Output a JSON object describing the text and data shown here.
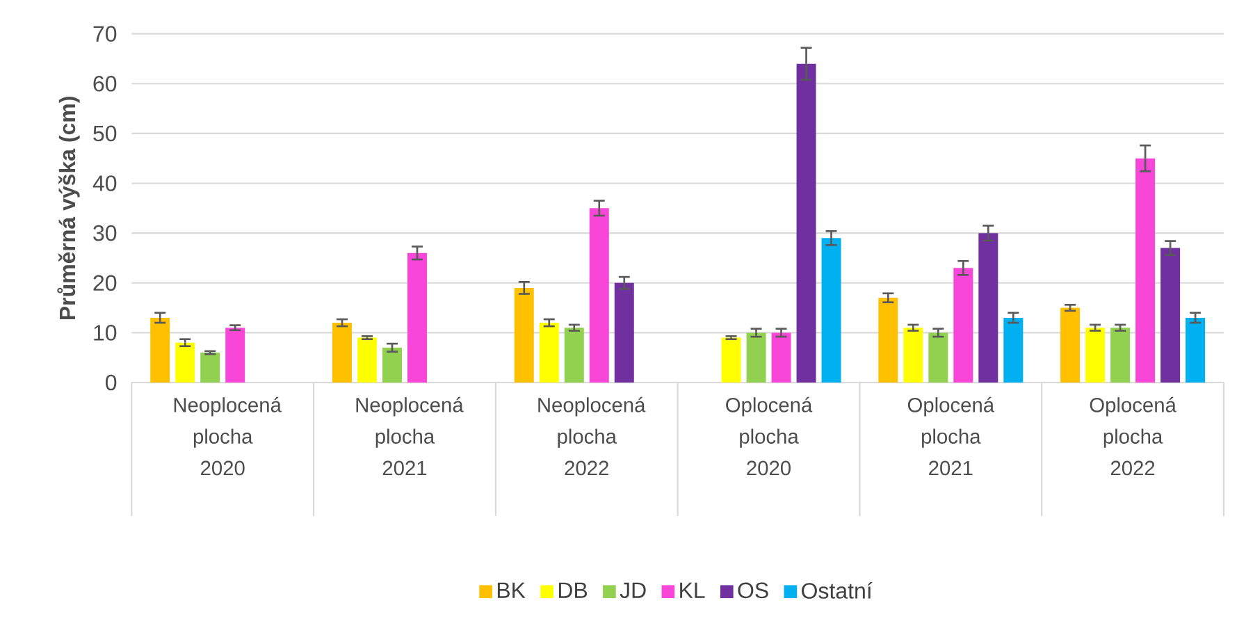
{
  "chart_data": {
    "type": "bar",
    "ylabel": "Průměrná výška (cm)",
    "categories": [
      "Neoplocená plocha 2020",
      "Neoplocená plocha 2021",
      "Neoplocená plocha 2022",
      "Oplocená plocha 2020",
      "Oplocená plocha 2021",
      "Oplocená plocha 2022"
    ],
    "series": [
      {
        "name": "BK",
        "color": "#ffc000",
        "values": [
          13,
          12,
          19,
          null,
          17,
          15
        ],
        "errors": [
          1,
          0.7,
          1.2,
          null,
          0.9,
          0.6
        ]
      },
      {
        "name": "DB",
        "color": "#ffff00",
        "values": [
          8,
          9,
          12,
          9,
          11,
          11
        ],
        "errors": [
          0.7,
          0.3,
          0.7,
          0.3,
          0.6,
          0.6
        ]
      },
      {
        "name": "JD",
        "color": "#92d050",
        "values": [
          6,
          7,
          11,
          10,
          10,
          11
        ],
        "errors": [
          0.3,
          0.8,
          0.6,
          0.8,
          0.8,
          0.6
        ]
      },
      {
        "name": "KL",
        "color": "#f847d8",
        "values": [
          11,
          26,
          35,
          10,
          23,
          45
        ],
        "errors": [
          0.5,
          1.3,
          1.5,
          0.8,
          1.4,
          2.6
        ]
      },
      {
        "name": "OS",
        "color": "#7030a0",
        "values": [
          null,
          null,
          20,
          64,
          30,
          27
        ],
        "errors": [
          null,
          null,
          1.2,
          3.2,
          1.5,
          1.4
        ]
      },
      {
        "name": "Ostatní",
        "color": "#00b0f0",
        "values": [
          null,
          null,
          null,
          29,
          13,
          13
        ],
        "errors": [
          null,
          null,
          null,
          1.4,
          1,
          1
        ]
      }
    ],
    "ylim": [
      0,
      70
    ],
    "yticks": [
      0,
      10,
      20,
      30,
      40,
      50,
      60,
      70
    ],
    "grid": "y",
    "legend": "bottom"
  }
}
